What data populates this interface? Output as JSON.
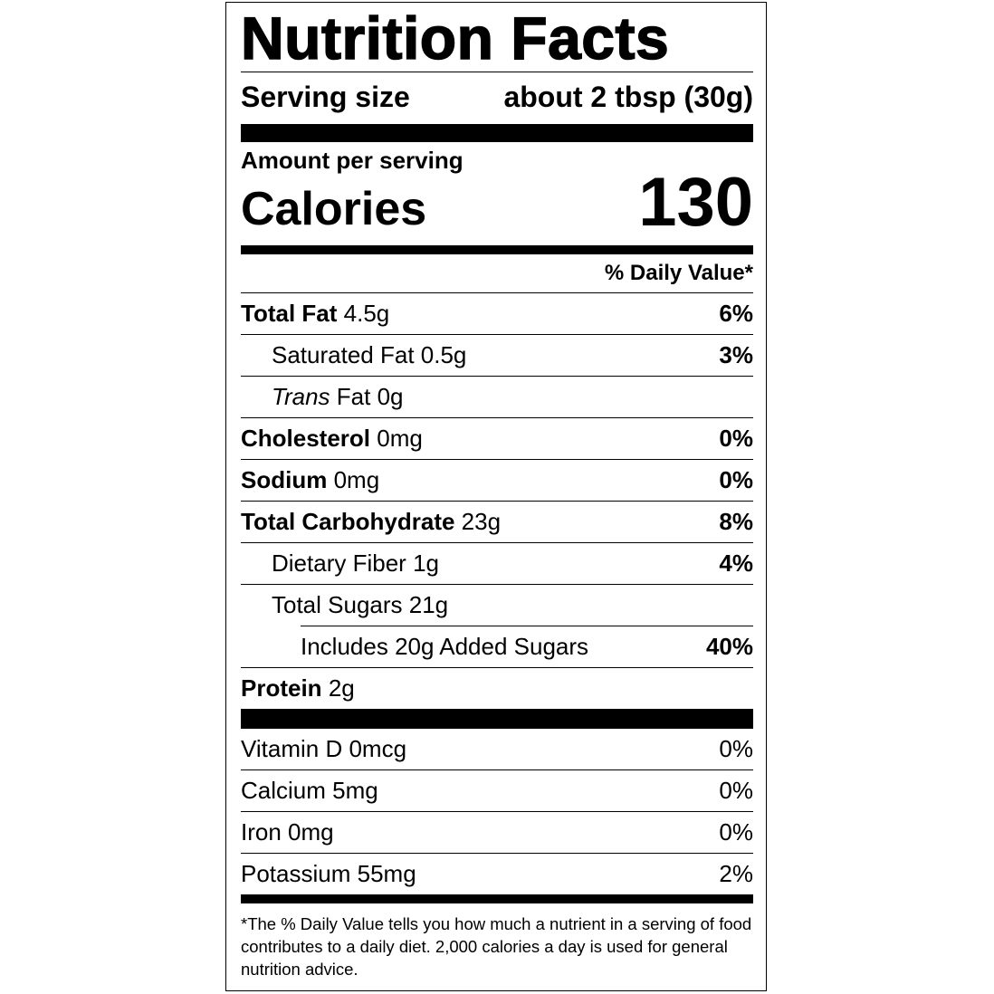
{
  "title": "Nutrition Facts",
  "serving": {
    "label": "Serving size",
    "value": "about 2 tbsp (30g)"
  },
  "amount_per_serving": "Amount per serving",
  "calories": {
    "label": "Calories",
    "value": "130"
  },
  "daily_value_header": "% Daily Value*",
  "nutrients": [
    {
      "name": "Total Fat",
      "amount": "4.5g",
      "dv": "6%"
    },
    {
      "name": "Saturated Fat",
      "amount": "0.5g",
      "dv": "3%"
    },
    {
      "name": "Trans",
      "name_rest": "Fat",
      "amount": "0g",
      "dv": ""
    },
    {
      "name": "Cholesterol",
      "amount": "0mg",
      "dv": "0%"
    },
    {
      "name": "Sodium",
      "amount": "0mg",
      "dv": "0%"
    },
    {
      "name": "Total Carbohydrate",
      "amount": "23g",
      "dv": "8%"
    },
    {
      "name": "Dietary Fiber",
      "amount": "1g",
      "dv": "4%"
    },
    {
      "name": "Total Sugars",
      "amount": "21g",
      "dv": ""
    },
    {
      "name": "Includes 20g Added Sugars",
      "dv": "40%"
    },
    {
      "name": "Protein",
      "amount": "2g"
    }
  ],
  "vitamins": [
    {
      "name": "Vitamin D",
      "amount": "0mcg",
      "dv": "0%"
    },
    {
      "name": "Calcium",
      "amount": "5mg",
      "dv": "0%"
    },
    {
      "name": "Iron",
      "amount": "0mg",
      "dv": "0%"
    },
    {
      "name": "Potassium",
      "amount": "55mg",
      "dv": "2%"
    }
  ],
  "footnote": "*The % Daily Value tells you how much a nutrient in a serving of food contributes to a daily diet. 2,000 calories a day is used for general nutrition advice."
}
